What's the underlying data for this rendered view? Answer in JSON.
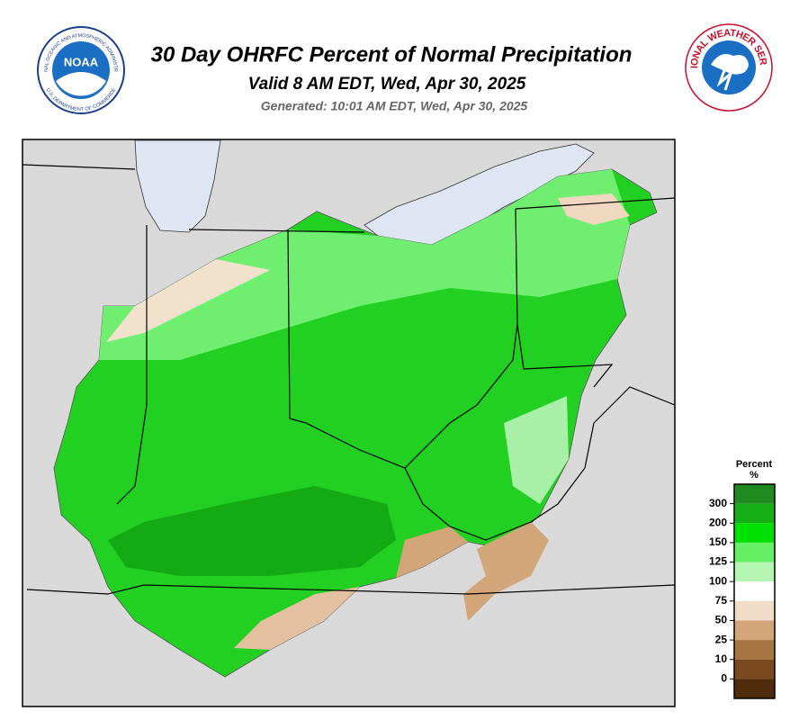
{
  "header": {
    "title": "30 Day OHRFC Percent of Normal Precipitation",
    "valid": "Valid 8 AM EDT, Wed, Apr 30, 2025",
    "generated": "Generated: 10:01 AM EDT, Wed, Apr 30, 2025"
  },
  "logos": {
    "noaa": {
      "label": "NOAA",
      "ring_top": "NATIONAL OCEANIC AND ATMOSPHERIC ADMINISTRATION",
      "ring_bottom": "U.S. DEPARTMENT OF COMMERCE"
    },
    "nws": {
      "ring": "NATIONAL WEATHER SERVICE"
    }
  },
  "legend": {
    "title": "Percent",
    "unit": "%",
    "ticks": [
      300,
      200,
      150,
      125,
      100,
      75,
      50,
      25,
      10,
      0
    ],
    "colors": [
      "#1f8a1f",
      "#16b016",
      "#00e000",
      "#66f066",
      "#b4f5b4",
      "#ffffff",
      "#f0dcc8",
      "#d2a678",
      "#a87442",
      "#7a4a1e",
      "#4e2c0c"
    ]
  }
}
